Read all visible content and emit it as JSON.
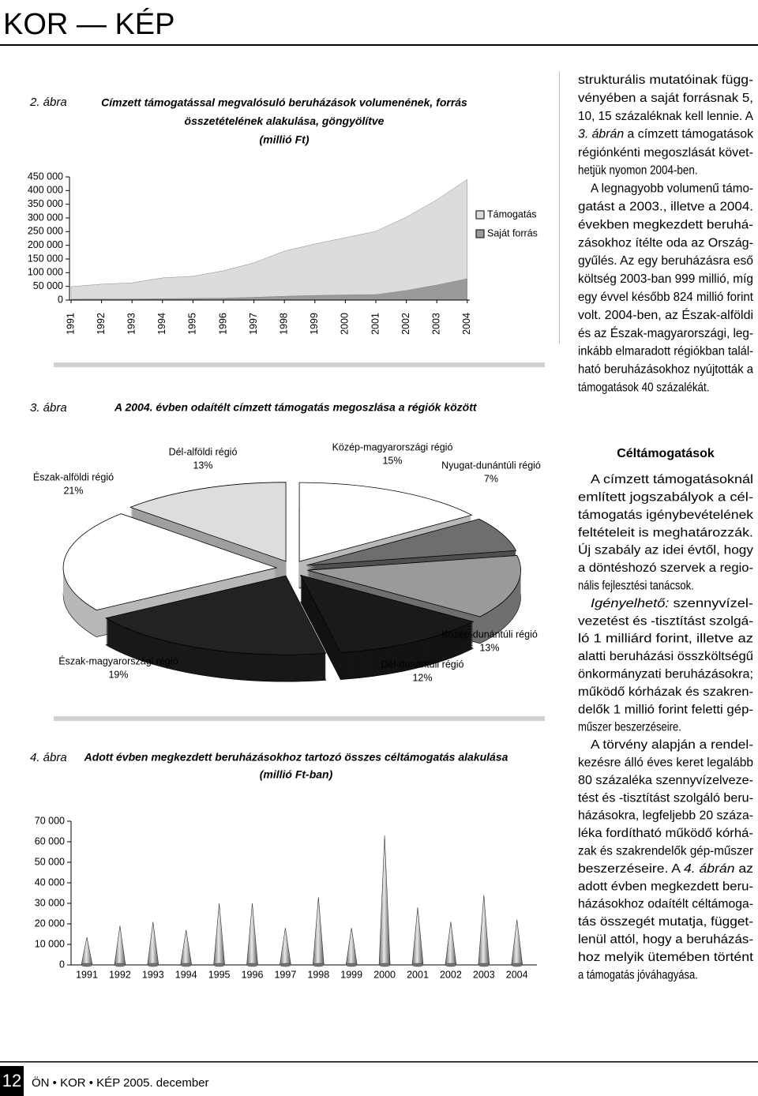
{
  "header": {
    "title": "KOR — KÉP"
  },
  "chart_data": [
    {
      "type": "area",
      "figure_label": "2. ábra",
      "title": [
        "Címzett támogatással megvalósuló beruházások volumenének, forrás",
        "összetételének alakulása, göngyölítve",
        "(millió Ft)"
      ],
      "categories": [
        "1991",
        "1992",
        "1993",
        "1994",
        "1995",
        "1996",
        "1997",
        "1998",
        "1999",
        "2000",
        "2001",
        "2002",
        "2003",
        "2004"
      ],
      "series": [
        {
          "name": "Támogatás",
          "color": "#dcdcdc",
          "values": [
            46000,
            54000,
            59000,
            76000,
            81000,
            100000,
            126000,
            165000,
            188000,
            209000,
            231000,
            268000,
            311000,
            363000
          ]
        },
        {
          "name": "Saját forrás",
          "color": "#9a9a9a",
          "values": [
            3000,
            4000,
            4000,
            5000,
            6000,
            7000,
            10000,
            14000,
            17000,
            19000,
            20000,
            35000,
            55000,
            78000
          ]
        }
      ],
      "stacked": true,
      "ylim": [
        0,
        450000
      ],
      "yticks": [
        0,
        {
          "value": 50000,
          "label": "50 000"
        },
        {
          "value": 100000,
          "label": "100 000"
        },
        {
          "value": 150000,
          "label": "150 000"
        },
        {
          "value": 200000,
          "label": "200 000"
        },
        {
          "value": 250000,
          "label": "250 000"
        },
        {
          "value": 300000,
          "label": "300 000"
        },
        {
          "value": 350000,
          "label": "350 000"
        },
        {
          "value": 400000,
          "label": "400 000"
        },
        {
          "value": 450000,
          "label": "450 000"
        }
      ],
      "legend": "right"
    },
    {
      "type": "pie",
      "figure_label": "3. ábra",
      "title": [
        "A 2004. évben odaítélt címzett támogatás megoszlása a régiók között"
      ],
      "categories": [
        "Közép-magyarországi régió",
        "Nyugat-dunántúli régió",
        "Közép-dunántúli régió",
        "Dél-dunántúli régió",
        "Észak-magyarországi régió",
        "Észak-alföldi régió",
        "Dél-alföldi régió"
      ],
      "values": [
        15,
        7,
        13,
        12,
        19,
        21,
        13
      ],
      "value_labels": [
        "15%",
        "7%",
        "13%",
        "12%",
        "19%",
        "21%",
        "13%"
      ],
      "colors": [
        "#ffffff",
        "#6e6e6e",
        "#9a9a9a",
        "#1a1a1a",
        "#222222",
        "#ffffff",
        "#dddddd"
      ],
      "exploded": true
    },
    {
      "type": "cone",
      "figure_label": "4. ábra",
      "title": [
        "Adott évben megkezdett beruházásokhoz tartozó összes céltámogatás alakulása",
        "(millió Ft-ban)"
      ],
      "categories": [
        "1991",
        "1992",
        "1993",
        "1994",
        "1995",
        "1996",
        "1997",
        "1998",
        "1999",
        "2000",
        "2001",
        "2002",
        "2003",
        "2004"
      ],
      "values": [
        13500,
        19000,
        21000,
        17000,
        30000,
        30000,
        18000,
        33000,
        18000,
        63000,
        28000,
        21000,
        34000,
        22000
      ],
      "ylim": [
        0,
        70000
      ],
      "yticks": [
        0,
        {
          "value": 10000,
          "label": "10 000"
        },
        {
          "value": 20000,
          "label": "20 000"
        },
        {
          "value": 30000,
          "label": "30 000"
        },
        {
          "value": 40000,
          "label": "40 000"
        },
        {
          "value": 50000,
          "label": "50 000"
        },
        {
          "value": 60000,
          "label": "60 000"
        },
        {
          "value": 70000,
          "label": "70 000"
        }
      ]
    }
  ],
  "article": {
    "blocks": [
      {
        "lines": [
          "strukturális mutatóinak függ-",
          "vényében a saját forrásnak 5,",
          "10, 15 százaléknak kell lennie. A",
          [
            {
              "text": "3. ábrán",
              "italic": true
            },
            {
              "text": " a címzett támogatások"
            }
          ],
          "régiónkénti megoszlását követ-",
          "hetjük nyomon 2004-ben."
        ]
      },
      {
        "lines": [
          "A legnagyobb volumenű támo-",
          "gatást a 2003., illetve a 2004.",
          "években megkezdett beruhá-",
          "zásokhoz ítélte oda az Ország-",
          "gyűlés. Az egy beruházásra eső",
          "költség 2003-ban 999 millió, míg",
          "egy évvel később 824 millió forint",
          "volt. 2004-ben, az Észak-alföldi",
          "és az Észak-magyarországi, leg-",
          "inkább elmaradott régiókban talál-",
          "ható beruházásokhoz nyújtották a",
          "támogatások 40 százalékát."
        ]
      },
      {
        "heading": "Céltámogatások"
      },
      {
        "lines": [
          "A címzett támogatásoknál",
          "említett jogszabályok a cél-",
          "támogatás igénybevételének",
          "feltételeit is meghatározzák.",
          "Új szabály az idei évtől, hogy",
          "a döntéshozó szervek a regio-",
          "nális fejlesztési tanácsok."
        ]
      },
      {
        "lines": [
          [
            {
              "text": "Igényelhető:",
              "italic": true
            },
            {
              "text": " szennyvízel-"
            }
          ],
          "vezetést és -tisztítást szolgá-",
          "ló 1 milliárd forint, illetve az",
          "alatti beruházási összköltségű",
          "önkormányzati beruházásokra;",
          "működő kórházak és szakren-",
          "delők 1 millió forint feletti gép-",
          "műszer beszerzéseire."
        ]
      },
      {
        "lines": [
          "A törvény alapján a rendel-",
          "kezésre álló éves keret legalább",
          "80 százaléka szennyvízelveze-",
          "tést és -tisztítást szolgáló beru-",
          "házásokra, legfeljebb 20 száza-",
          "léka fordítható működő kórhá-",
          "zak és szakrendelők gép-műszer",
          [
            {
              "text": "beszerzéseire. A "
            },
            {
              "text": "4. ábrán",
              "italic": true
            },
            {
              "text": " az"
            }
          ],
          "adott évben megkezdett beru-",
          "házásokhoz odaítélt céltámoga-",
          "tás összegét mutatja, függet-",
          "lenül attól, hogy a beruházás-",
          "hoz melyik ütemében történt",
          "a támogatás jóváhagyása."
        ]
      }
    ]
  },
  "footer": {
    "page": "12",
    "text": "ÖN • KOR • KÉP 2005. december"
  }
}
